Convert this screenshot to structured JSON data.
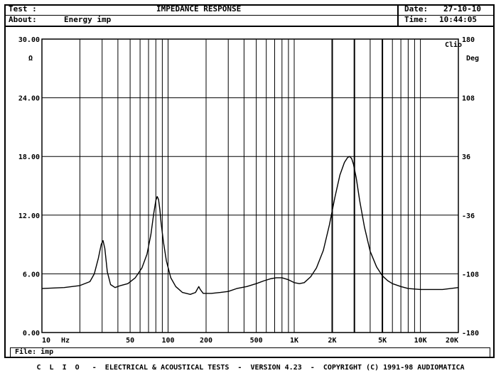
{
  "header": {
    "test_label": "Test :",
    "test_value": "IMPEDANCE RESPONSE",
    "about_label": "About:",
    "about_value": "Energy imp",
    "date_label": "Date:",
    "date_value": "27-10-10",
    "time_label": "Time:",
    "time_value": "10:44:05"
  },
  "file_line": "File: imp",
  "footer": "C  L  I  O   -  ELECTRICAL & ACOUSTICAL TESTS  -  VERSION 4.23  -  COPYRIGHT (C) 1991-98 AUDIOMATICA",
  "chart_data": {
    "type": "line",
    "left_unit": "Ω",
    "right_unit": "Deg",
    "corner_label": "Clio",
    "x_unit": "Hz",
    "x_scale": "log",
    "xlim": [
      10,
      20000
    ],
    "ylim": [
      0,
      30
    ],
    "y2lim": [
      -180,
      180
    ],
    "grid": true,
    "y_ticks": [
      {
        "value": 0,
        "label": "0.00"
      },
      {
        "value": 6,
        "label": "6.00"
      },
      {
        "value": 12,
        "label": "12.00"
      },
      {
        "value": 18,
        "label": "18.00"
      },
      {
        "value": 24,
        "label": "24.00"
      },
      {
        "value": 30,
        "label": "30.00"
      }
    ],
    "y2_ticks": [
      {
        "value": -180,
        "label": "-180"
      },
      {
        "value": -108,
        "label": "-108"
      },
      {
        "value": -36,
        "label": "-36"
      },
      {
        "value": 36,
        "label": "36"
      },
      {
        "value": 108,
        "label": "108"
      },
      {
        "value": 180,
        "label": "180"
      }
    ],
    "x_ticks": [
      {
        "value": 10,
        "label": "10"
      },
      {
        "value": 50,
        "label": "50"
      },
      {
        "value": 100,
        "label": "100"
      },
      {
        "value": 200,
        "label": "200"
      },
      {
        "value": 500,
        "label": "500"
      },
      {
        "value": 1000,
        "label": "1K"
      },
      {
        "value": 2000,
        "label": "2K"
      },
      {
        "value": 5000,
        "label": "5K"
      },
      {
        "value": 10000,
        "label": "10K"
      },
      {
        "value": 20000,
        "label": "20K"
      }
    ],
    "x_grid": [
      20,
      30,
      40,
      50,
      60,
      70,
      80,
      90,
      100,
      200,
      300,
      400,
      500,
      600,
      700,
      800,
      900,
      1000,
      2000,
      3000,
      4000,
      5000,
      6000,
      7000,
      8000,
      9000,
      10000
    ],
    "x_grid_bold": [
      2000,
      3000,
      5000
    ],
    "series": [
      {
        "x": [
          10,
          15,
          20,
          24,
          26,
          28,
          29.5,
          30.5,
          31.5,
          33,
          35,
          38,
          42,
          48,
          55,
          62,
          68,
          73,
          77,
          80,
          82,
          84,
          86,
          88,
          92,
          97,
          105,
          115,
          130,
          150,
          165,
          175,
          180,
          190,
          220,
          260,
          300,
          350,
          420,
          500,
          580,
          650,
          720,
          800,
          900,
          1000,
          1100,
          1200,
          1350,
          1500,
          1700,
          1900,
          2100,
          2300,
          2500,
          2650,
          2750,
          2850,
          2950,
          3100,
          3300,
          3600,
          4000,
          4500,
          5000,
          5500,
          6000,
          7000,
          8000,
          10000,
          12000,
          15000,
          20000
        ],
        "y": [
          4.5,
          4.6,
          4.8,
          5.2,
          6.0,
          7.6,
          9.0,
          9.4,
          8.6,
          6.2,
          4.9,
          4.6,
          4.8,
          5.0,
          5.6,
          6.6,
          8.0,
          10.0,
          12.2,
          13.5,
          13.9,
          13.6,
          12.6,
          11.2,
          9.2,
          7.3,
          5.6,
          4.7,
          4.1,
          3.9,
          4.1,
          4.7,
          4.4,
          4.0,
          4.0,
          4.1,
          4.2,
          4.5,
          4.7,
          5.0,
          5.3,
          5.5,
          5.6,
          5.6,
          5.4,
          5.1,
          5.0,
          5.1,
          5.7,
          6.6,
          8.4,
          11.0,
          13.8,
          16.1,
          17.4,
          17.9,
          18.0,
          17.8,
          17.2,
          15.8,
          13.5,
          10.8,
          8.3,
          6.7,
          5.8,
          5.3,
          5.0,
          4.7,
          4.5,
          4.4,
          4.4,
          4.4,
          4.6
        ]
      }
    ]
  }
}
